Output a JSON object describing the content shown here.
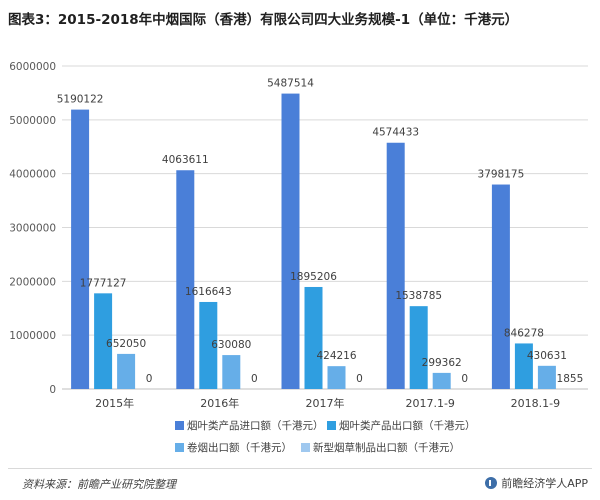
{
  "title": "图表3：2015-2018年中烟国际（香港）有限公司四大业务规模-1（单位：千港元）",
  "source": "资料来源：前瞻产业研究院整理",
  "brand": "前瞻经济学人APP",
  "colors": {
    "series1": "#4a7fd8",
    "series2": "#2f9ee0",
    "series3": "#66aee8",
    "series4": "#9fc8ef",
    "grid": "#d9d9d9",
    "axis": "#bfbfbf"
  },
  "chart_data": {
    "type": "bar",
    "categories": [
      "2015年",
      "2016年",
      "2017年",
      "2017.1-9",
      "2018.1-9"
    ],
    "ylim": [
      0,
      6000000
    ],
    "yticks": [
      "0",
      "1000000",
      "2000000",
      "3000000",
      "4000000",
      "5000000",
      "6000000"
    ],
    "ytick_values": [
      0,
      1000000,
      2000000,
      3000000,
      4000000,
      5000000,
      6000000
    ],
    "grid": true,
    "legend_position": "bottom",
    "series": [
      {
        "name": "烟叶类产品进口额（千港元）",
        "values": [
          5190122,
          4063611,
          5487514,
          4574433,
          3798175
        ],
        "labels": [
          "5190122",
          "4063611",
          "5487514",
          "4574433",
          "3798175"
        ]
      },
      {
        "name": "烟叶类产品出口额（千港元）",
        "values": [
          1777127,
          1616643,
          1895206,
          1538785,
          846278
        ],
        "labels": [
          "1777127",
          "1616643",
          "1895206",
          "1538785",
          "846278"
        ]
      },
      {
        "name": "卷烟出口额（千港元）",
        "values": [
          652050,
          630080,
          424216,
          299362,
          430631
        ],
        "labels": [
          "652050",
          "630080",
          "424216",
          "299362",
          "430631"
        ]
      },
      {
        "name": "新型烟草制品出口额（千港元）",
        "values": [
          0,
          0,
          0,
          0,
          1855
        ],
        "labels": [
          "0",
          "0",
          "0",
          "0",
          "1855"
        ]
      }
    ]
  }
}
